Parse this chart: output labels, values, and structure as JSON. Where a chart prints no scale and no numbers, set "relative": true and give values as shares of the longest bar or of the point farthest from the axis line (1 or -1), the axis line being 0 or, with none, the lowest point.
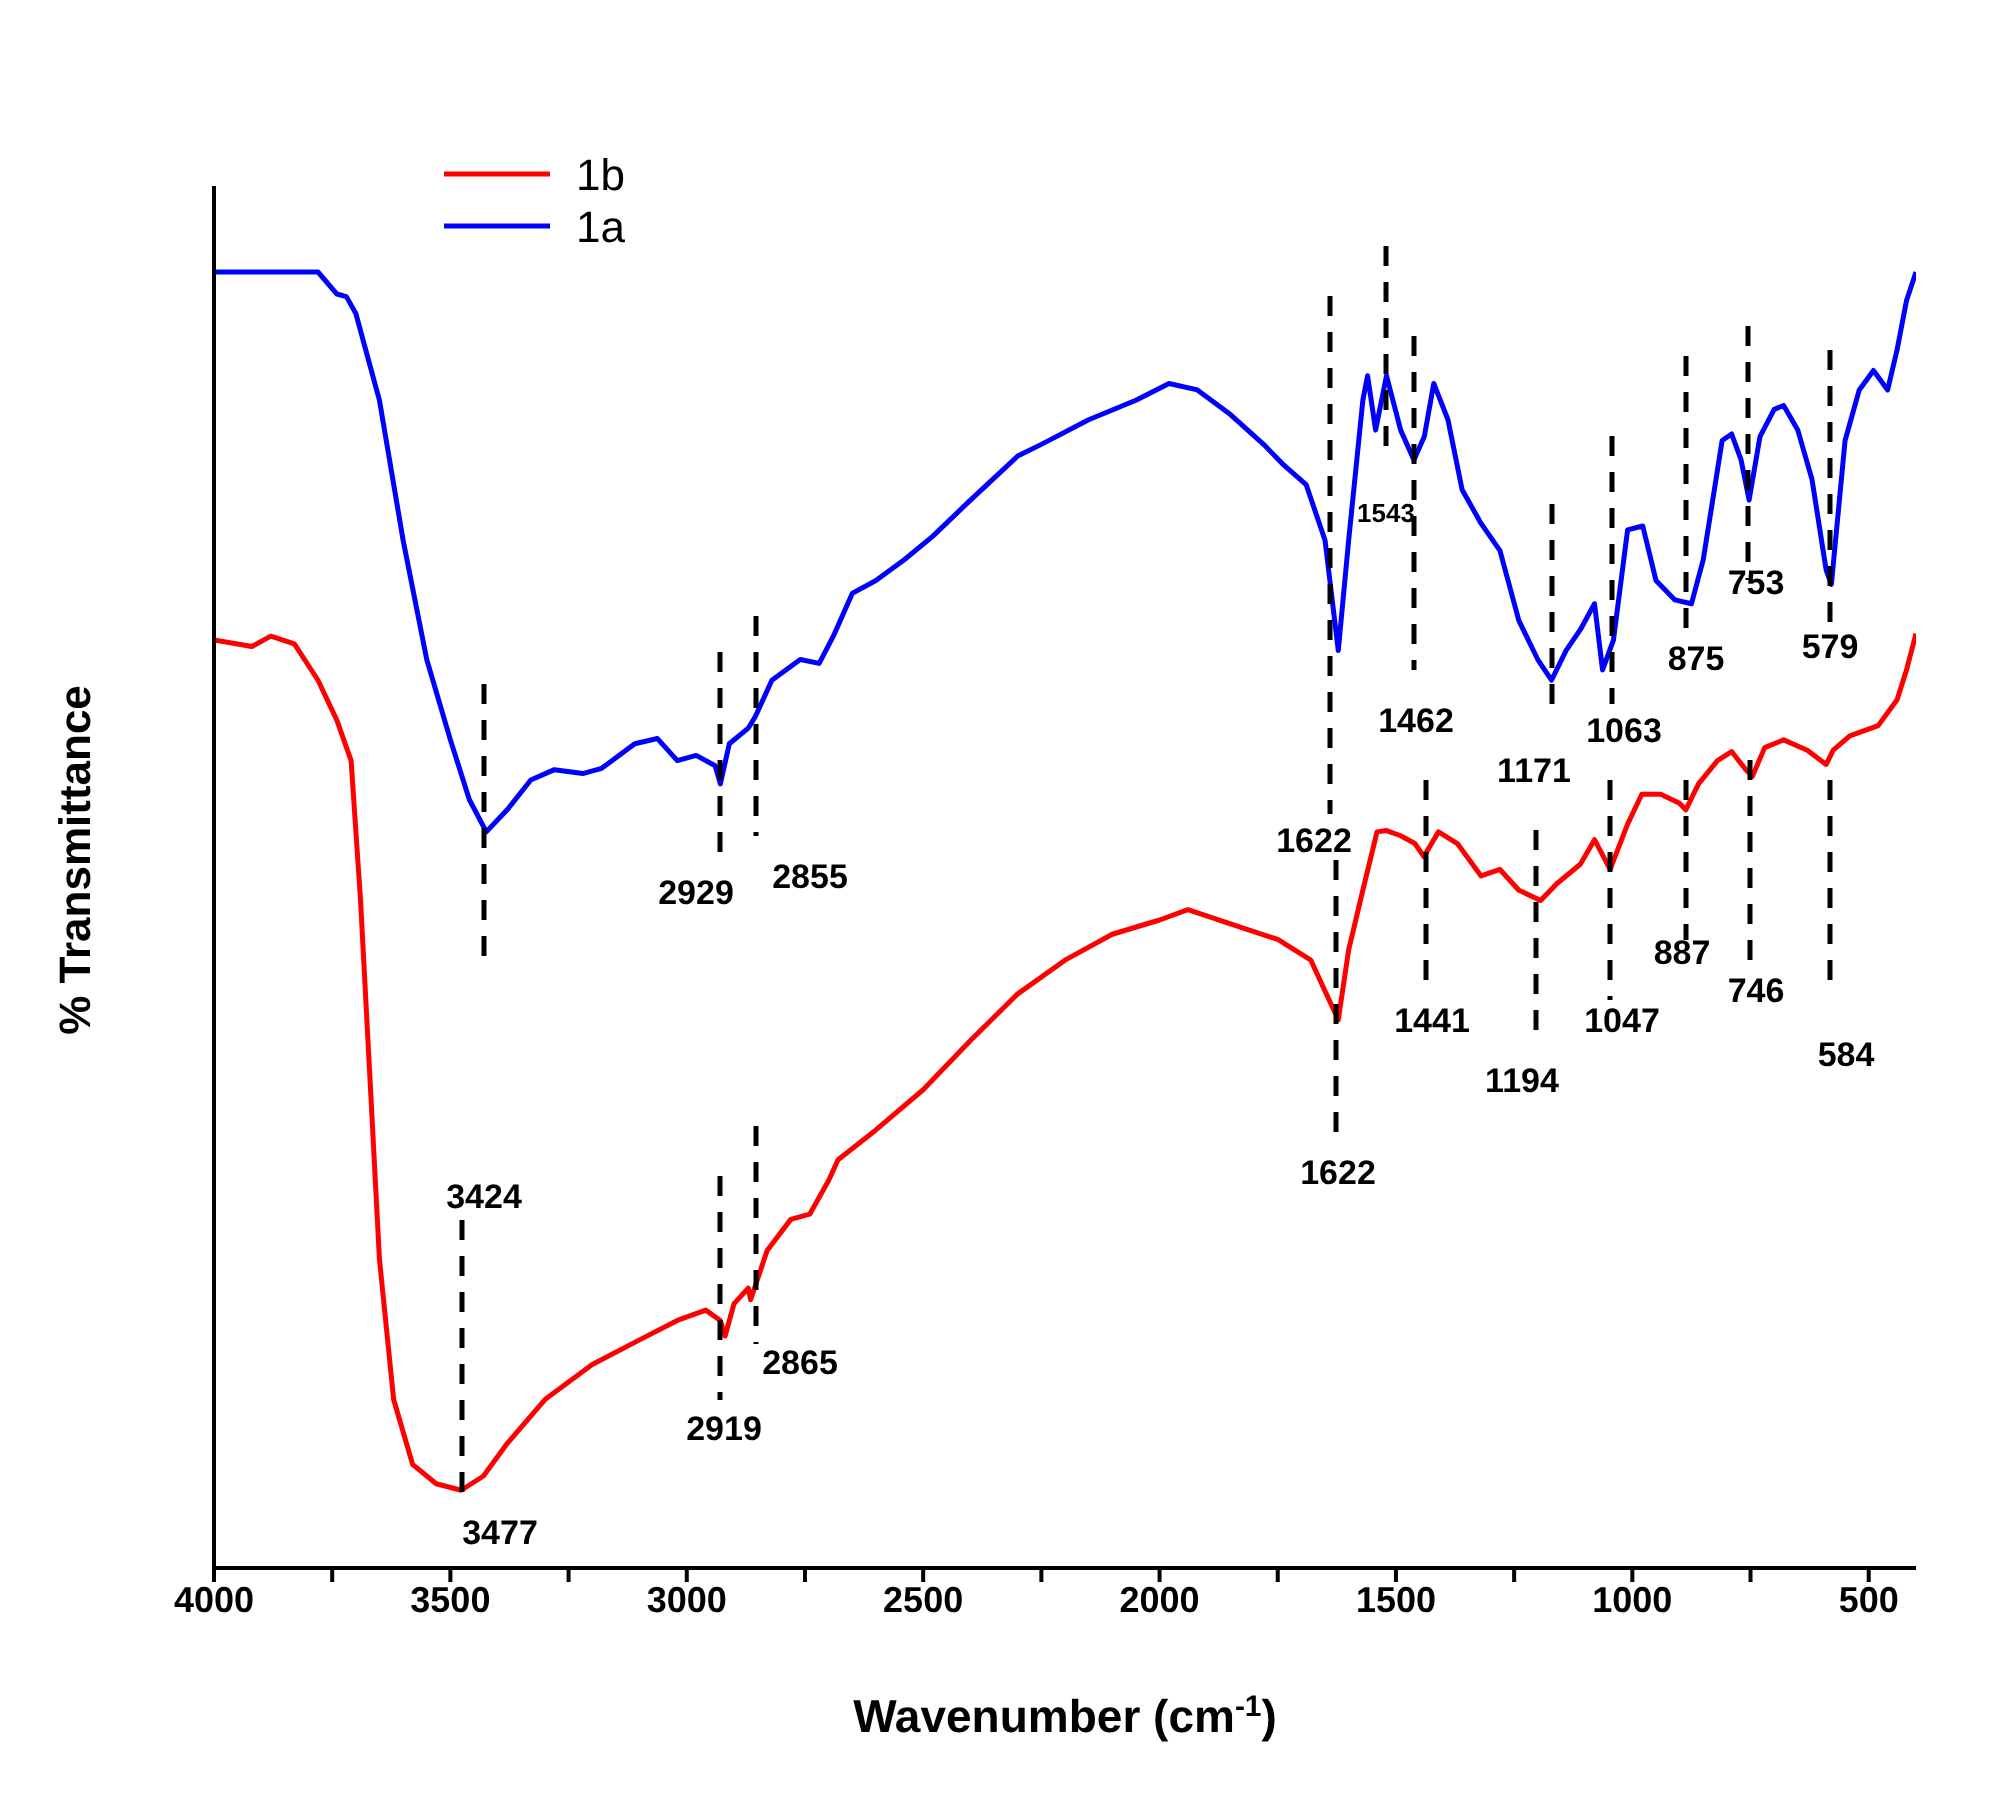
{
  "chart_data": {
    "type": "line",
    "xlabel": "Wavenumber (cm$^{-1}$)",
    "ylabel": "% Transmittance",
    "relative": true,
    "legend": "top left",
    "grid": false,
    "marker": "none",
    "line_style": "solid",
    "xlim": [
      4000,
      400
    ],
    "xticks": [
      4000,
      {
        "value": 3750,
        "label": null
      },
      3500,
      {
        "value": 3250,
        "label": null
      },
      3000,
      {
        "value": 2750,
        "label": null
      },
      2500,
      {
        "value": 2250,
        "label": null
      },
      2000,
      {
        "value": 1750,
        "label": null
      },
      1500,
      {
        "value": 1250,
        "label": null
      },
      1000,
      {
        "value": 750,
        "label": null
      },
      500
    ],
    "series": [
      {
        "name": "1b",
        "color": "#ff0000",
        "x": [
          4000,
          3920,
          3880,
          3830,
          3780,
          3740,
          3710,
          3690,
          3670,
          3650,
          3620,
          3580,
          3530,
          3477,
          3430,
          3380,
          3300,
          3200,
          3100,
          3020,
          2960,
          2929,
          2919,
          2900,
          2870,
          2865,
          2830,
          2780,
          2740,
          2700,
          2680,
          2600,
          2500,
          2400,
          2300,
          2200,
          2100,
          2000,
          1940,
          1850,
          1750,
          1680,
          1622,
          1600,
          1570,
          1540,
          1520,
          1490,
          1460,
          1441,
          1410,
          1370,
          1320,
          1280,
          1240,
          1194,
          1160,
          1110,
          1080,
          1047,
          1010,
          980,
          940,
          900,
          887,
          860,
          820,
          790,
          760,
          746,
          720,
          680,
          630,
          590,
          575,
          540,
          480,
          440,
          420,
          400
        ],
        "values": [
          0.716,
          0.711,
          0.719,
          0.713,
          0.685,
          0.654,
          0.623,
          0.515,
          0.377,
          0.238,
          0.13,
          0.08,
          0.065,
          0.06,
          0.071,
          0.096,
          0.13,
          0.157,
          0.176,
          0.191,
          0.199,
          0.191,
          0.179,
          0.204,
          0.216,
          0.207,
          0.245,
          0.269,
          0.273,
          0.299,
          0.315,
          0.338,
          0.369,
          0.407,
          0.443,
          0.469,
          0.489,
          0.5,
          0.508,
          0.497,
          0.485,
          0.469,
          0.423,
          0.477,
          0.523,
          0.568,
          0.569,
          0.565,
          0.559,
          0.549,
          0.568,
          0.559,
          0.534,
          0.539,
          0.523,
          0.515,
          0.528,
          0.543,
          0.562,
          0.539,
          0.574,
          0.597,
          0.597,
          0.59,
          0.585,
          0.605,
          0.623,
          0.63,
          0.616,
          0.611,
          0.633,
          0.639,
          0.631,
          0.62,
          0.631,
          0.642,
          0.65,
          0.67,
          0.693,
          0.721
        ]
      },
      {
        "name": "1a",
        "color": "#0000ff",
        "x": [
          4000,
          3780,
          3740,
          3720,
          3700,
          3650,
          3600,
          3550,
          3500,
          3460,
          3424,
          3380,
          3330,
          3280,
          3220,
          3180,
          3110,
          3062,
          3020,
          2980,
          2940,
          2929,
          2910,
          2870,
          2855,
          2820,
          2760,
          2720,
          2690,
          2650,
          2600,
          2540,
          2480,
          2400,
          2300,
          2250,
          2150,
          2050,
          1980,
          1920,
          1850,
          1780,
          1740,
          1690,
          1650,
          1622,
          1600,
          1570,
          1560,
          1543,
          1520,
          1490,
          1462,
          1440,
          1420,
          1390,
          1360,
          1320,
          1280,
          1240,
          1200,
          1171,
          1140,
          1110,
          1080,
          1063,
          1040,
          1010,
          978,
          950,
          910,
          875,
          850,
          810,
          790,
          770,
          753,
          730,
          700,
          680,
          650,
          620,
          590,
          579,
          550,
          520,
          490,
          460,
          440,
          420,
          400
        ],
        "values": [
          1.0,
          1.0,
          0.983,
          0.981,
          0.968,
          0.901,
          0.793,
          0.701,
          0.639,
          0.593,
          0.568,
          0.585,
          0.608,
          0.616,
          0.613,
          0.617,
          0.636,
          0.64,
          0.623,
          0.627,
          0.619,
          0.605,
          0.636,
          0.648,
          0.657,
          0.685,
          0.701,
          0.698,
          0.719,
          0.752,
          0.762,
          0.778,
          0.796,
          0.824,
          0.858,
          0.867,
          0.886,
          0.901,
          0.914,
          0.909,
          0.89,
          0.867,
          0.852,
          0.836,
          0.793,
          0.708,
          0.793,
          0.901,
          0.92,
          0.878,
          0.92,
          0.878,
          0.855,
          0.873,
          0.914,
          0.886,
          0.832,
          0.806,
          0.785,
          0.731,
          0.701,
          0.685,
          0.708,
          0.724,
          0.744,
          0.693,
          0.716,
          0.801,
          0.804,
          0.762,
          0.747,
          0.744,
          0.778,
          0.87,
          0.875,
          0.855,
          0.824,
          0.873,
          0.894,
          0.897,
          0.878,
          0.84,
          0.77,
          0.759,
          0.87,
          0.909,
          0.924,
          0.909,
          0.94,
          0.978,
          1.0
        ]
      }
    ],
    "annotations": [
      "3424",
      "2929",
      "2855",
      "1622",
      "1543",
      "1462",
      "1171",
      "1063",
      "875",
      "753",
      "579",
      "3477",
      "2919",
      "2865",
      "1622",
      "1441",
      "1194",
      "1047",
      "887",
      "746",
      "584"
    ]
  }
}
